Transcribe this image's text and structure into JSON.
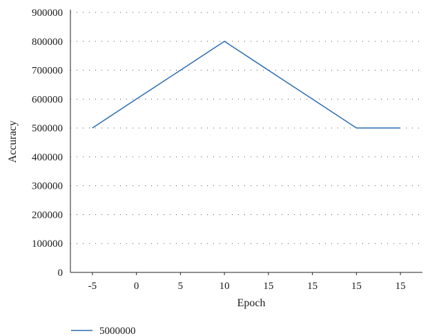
{
  "chart_data": {
    "type": "line",
    "title": "",
    "xlabel": "Epoch",
    "ylabel": "Accuracy",
    "categories": [
      "-5",
      "0",
      "5",
      "10",
      "15",
      "15",
      "15",
      "15"
    ],
    "series": [
      {
        "name": "5000000",
        "color": "#2b6cb0",
        "values": [
          500000,
          600000,
          700000,
          800000,
          700000,
          600000,
          500000,
          500000
        ]
      }
    ],
    "ylim": [
      0,
      900000
    ],
    "yticks": [
      0,
      100000,
      200000,
      300000,
      400000,
      500000,
      600000,
      700000,
      800000,
      900000
    ],
    "grid": "horizontal-dotted",
    "legend_position": "bottom-left"
  }
}
